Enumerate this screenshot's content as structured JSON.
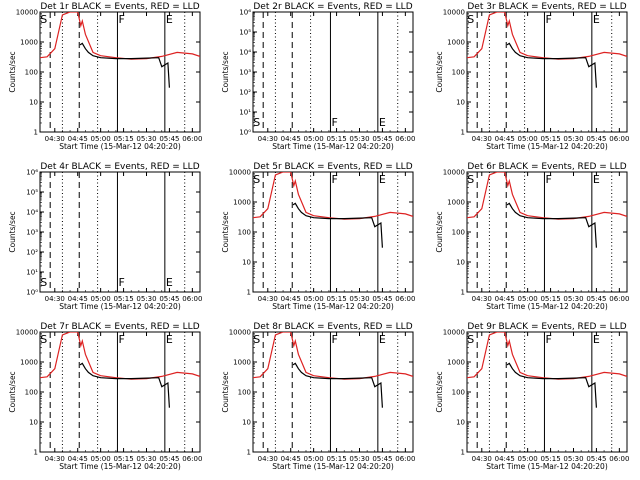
{
  "chart_data": [
    {
      "type": "line",
      "title": "Det 1r BLACK = Events, RED = LLD",
      "has_data": true,
      "ylim": [
        1,
        10000
      ],
      "log_y": true,
      "event_labels": [
        "S",
        "F",
        "E"
      ],
      "series": [
        {
          "name": "Events",
          "color": "#000000"
        },
        {
          "name": "LLD",
          "color": "#dd2222"
        }
      ]
    },
    {
      "type": "line",
      "title": "Det 2r BLACK = Events, RED = LLD",
      "has_data": false,
      "ylim": [
        1,
        1000000
      ],
      "log_y": true,
      "event_labels": [
        "S",
        "F",
        "E"
      ],
      "series": [
        {
          "name": "Events",
          "color": "#000000"
        },
        {
          "name": "LLD",
          "color": "#dd2222"
        }
      ]
    },
    {
      "type": "line",
      "title": "Det 3r BLACK = Events, RED = LLD",
      "has_data": true,
      "ylim": [
        1,
        10000
      ],
      "log_y": true,
      "event_labels": [
        "S",
        "F",
        "E"
      ],
      "series": [
        {
          "name": "Events",
          "color": "#000000"
        },
        {
          "name": "LLD",
          "color": "#dd2222"
        }
      ]
    },
    {
      "type": "line",
      "title": "Det 4r BLACK = Events, RED = LLD",
      "has_data": false,
      "ylim": [
        1,
        1000000
      ],
      "log_y": true,
      "event_labels": [
        "S",
        "F",
        "E"
      ],
      "series": [
        {
          "name": "Events",
          "color": "#000000"
        },
        {
          "name": "LLD",
          "color": "#dd2222"
        }
      ]
    },
    {
      "type": "line",
      "title": "Det 5r BLACK = Events, RED = LLD",
      "has_data": true,
      "ylim": [
        1,
        10000
      ],
      "log_y": true,
      "event_labels": [
        "S",
        "F",
        "E"
      ],
      "series": [
        {
          "name": "Events",
          "color": "#000000"
        },
        {
          "name": "LLD",
          "color": "#dd2222"
        }
      ]
    },
    {
      "type": "line",
      "title": "Det 6r BLACK = Events, RED = LLD",
      "has_data": true,
      "ylim": [
        1,
        10000
      ],
      "log_y": true,
      "event_labels": [
        "S",
        "F",
        "E"
      ],
      "series": [
        {
          "name": "Events",
          "color": "#000000"
        },
        {
          "name": "LLD",
          "color": "#dd2222"
        }
      ]
    },
    {
      "type": "line",
      "title": "Det 7r BLACK = Events, RED = LLD",
      "has_data": true,
      "ylim": [
        1,
        10000
      ],
      "log_y": true,
      "event_labels": [
        "S",
        "F",
        "E"
      ],
      "series": [
        {
          "name": "Events",
          "color": "#000000"
        },
        {
          "name": "LLD",
          "color": "#dd2222"
        }
      ]
    },
    {
      "type": "line",
      "title": "Det 8r BLACK = Events, RED = LLD",
      "has_data": true,
      "ylim": [
        1,
        10000
      ],
      "log_y": true,
      "event_labels": [
        "S",
        "F",
        "E"
      ],
      "series": [
        {
          "name": "Events",
          "color": "#000000"
        },
        {
          "name": "LLD",
          "color": "#dd2222"
        }
      ]
    },
    {
      "type": "line",
      "title": "Det 9r BLACK = Events, RED = LLD",
      "has_data": true,
      "ylim": [
        1,
        10000
      ],
      "log_y": true,
      "event_labels": [
        "S",
        "F",
        "E"
      ],
      "series": [
        {
          "name": "Events",
          "color": "#000000"
        },
        {
          "name": "LLD",
          "color": "#dd2222"
        }
      ]
    }
  ],
  "shared": {
    "xlabel": "Start Time (15-Mar-12 04:20:20)",
    "ylabel": "Counts/sec",
    "x_ticks": [
      "04:30",
      "04:45",
      "05:00",
      "05:15",
      "05:30",
      "05:45",
      "06:00"
    ],
    "x_range": [
      "04:20:20",
      "06:05"
    ],
    "y_ticks_counts": [
      "1",
      "10",
      "100",
      "1000",
      "10000"
    ],
    "y_ticks_empty": [
      "10⁰",
      "10¹",
      "10²",
      "10³",
      "10⁴",
      "10⁵",
      "10⁶"
    ],
    "vertical_lines": [
      {
        "time": "04:27",
        "style": "dashed"
      },
      {
        "time": "04:35",
        "style": "dotted"
      },
      {
        "time": "04:46",
        "style": "dashed"
      },
      {
        "time": "04:58",
        "style": "dotted"
      },
      {
        "time": "05:11",
        "style": "solid"
      },
      {
        "time": "05:42",
        "style": "solid"
      },
      {
        "time": "05:55",
        "style": "dotted"
      }
    ],
    "events_curve": [
      [
        "04:46:30",
        800
      ],
      [
        "04:48",
        900
      ],
      [
        "04:50",
        600
      ],
      [
        "04:52",
        450
      ],
      [
        "04:55",
        350
      ],
      [
        "05:00",
        300
      ],
      [
        "05:10",
        280
      ],
      [
        "05:20",
        280
      ],
      [
        "05:30",
        290
      ],
      [
        "05:38",
        300
      ],
      [
        "05:40",
        150
      ],
      [
        "05:44",
        200
      ],
      [
        "05:45",
        30
      ]
    ],
    "lld_curve": [
      [
        "04:20:20",
        300
      ],
      [
        "04:25",
        320
      ],
      [
        "04:30",
        600
      ],
      [
        "04:35",
        8000
      ],
      [
        "04:40",
        15000
      ],
      [
        "04:45",
        12000
      ],
      [
        "04:47",
        3500
      ],
      [
        "04:48",
        5000
      ],
      [
        "04:50",
        1800
      ],
      [
        "04:55",
        450
      ],
      [
        "05:00",
        350
      ],
      [
        "05:10",
        300
      ],
      [
        "05:20",
        270
      ],
      [
        "05:30",
        280
      ],
      [
        "05:40",
        330
      ],
      [
        "05:50",
        450
      ],
      [
        "06:00",
        400
      ],
      [
        "06:05",
        330
      ]
    ]
  }
}
